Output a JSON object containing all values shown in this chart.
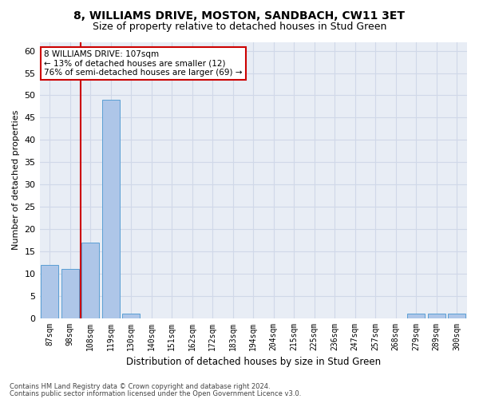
{
  "title1": "8, WILLIAMS DRIVE, MOSTON, SANDBACH, CW11 3ET",
  "title2": "Size of property relative to detached houses in Stud Green",
  "xlabel": "Distribution of detached houses by size in Stud Green",
  "ylabel": "Number of detached properties",
  "categories": [
    "87sqm",
    "98sqm",
    "108sqm",
    "119sqm",
    "130sqm",
    "140sqm",
    "151sqm",
    "162sqm",
    "172sqm",
    "183sqm",
    "194sqm",
    "204sqm",
    "215sqm",
    "225sqm",
    "236sqm",
    "247sqm",
    "257sqm",
    "268sqm",
    "279sqm",
    "289sqm",
    "300sqm"
  ],
  "values": [
    12,
    11,
    17,
    49,
    1,
    0,
    0,
    0,
    0,
    0,
    0,
    0,
    0,
    0,
    0,
    0,
    0,
    0,
    1,
    1,
    1
  ],
  "bar_color": "#aec6e8",
  "bar_edge_color": "#5a9fd4",
  "vline_x_index": 2,
  "vline_color": "#cc0000",
  "ylim": [
    0,
    62
  ],
  "yticks": [
    0,
    5,
    10,
    15,
    20,
    25,
    30,
    35,
    40,
    45,
    50,
    55,
    60
  ],
  "annotation_box_text": "8 WILLIAMS DRIVE: 107sqm\n← 13% of detached houses are smaller (12)\n76% of semi-detached houses are larger (69) →",
  "annotation_box_color": "#cc0000",
  "annotation_box_facecolor": "white",
  "grid_color": "#d0d8e8",
  "bg_color": "#e8edf5",
  "footer1": "Contains HM Land Registry data © Crown copyright and database right 2024.",
  "footer2": "Contains public sector information licensed under the Open Government Licence v3.0.",
  "title_fontsize": 10,
  "subtitle_fontsize": 9,
  "bar_width": 0.85
}
